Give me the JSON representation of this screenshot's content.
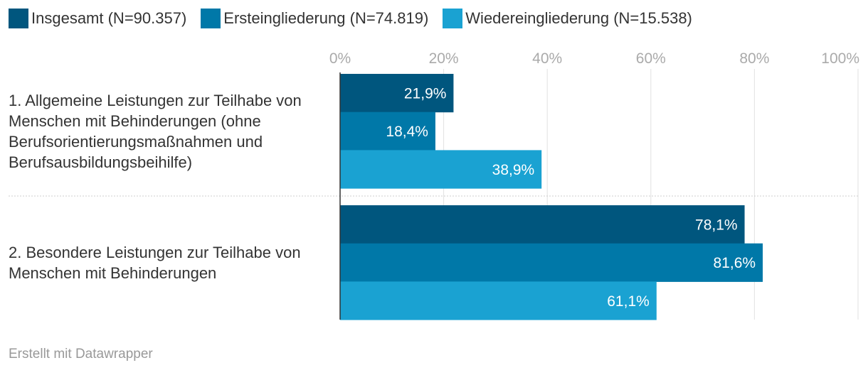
{
  "chart_data": {
    "type": "bar",
    "orientation": "horizontal",
    "categories": [
      [
        "1. Allgemeine Leistungen zur Teilhabe von",
        "Menschen mit Behinderungen (ohne",
        "Berufsorientierungsmaßnahmen und",
        "Berufsausbildungsbeihilfe)"
      ],
      [
        "2. Besondere Leistungen zur Teilhabe von",
        "Menschen mit Behinderungen"
      ]
    ],
    "series": [
      {
        "name": "Insgesamt (N=90.357)",
        "color": "#00567e",
        "values": [
          21.9,
          78.1
        ],
        "labels": [
          "21,9%",
          "78,1%"
        ]
      },
      {
        "name": "Ersteingliederung (N=74.819)",
        "color": "#0078a8",
        "values": [
          18.4,
          81.6
        ],
        "labels": [
          "18,4%",
          "81,6%"
        ]
      },
      {
        "name": "Wiedereingliederung (N=15.538)",
        "color": "#1aa2d2",
        "values": [
          38.9,
          61.1
        ],
        "labels": [
          "38,9%",
          "61,1%"
        ]
      }
    ],
    "xlim": [
      0,
      100
    ],
    "xticks": [
      0,
      20,
      40,
      60,
      80,
      100
    ],
    "xtick_labels": [
      "0%",
      "20%",
      "40%",
      "60%",
      "80%",
      "100%"
    ],
    "grid": true,
    "legend_position": "top-left"
  },
  "footer": {
    "credit": "Erstellt mit Datawrapper"
  }
}
